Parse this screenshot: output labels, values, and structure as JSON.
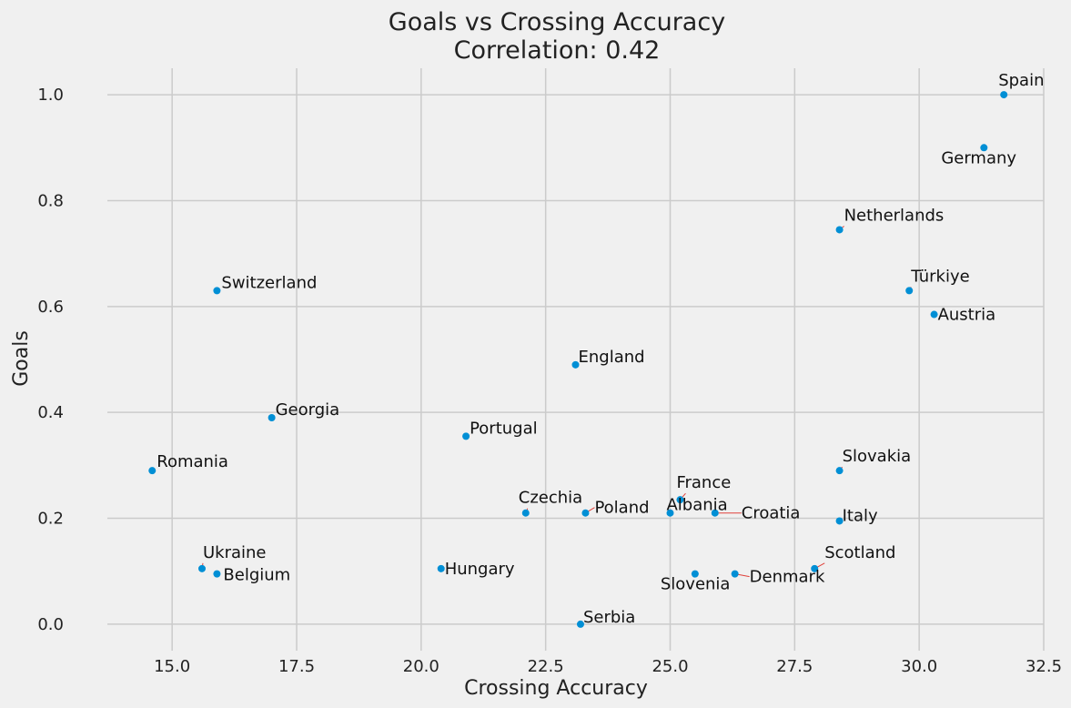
{
  "chart_data": {
    "type": "scatter",
    "title": "Goals vs Crossing Accuracy",
    "subtitle": "Correlation: 0.42",
    "xlabel": "Crossing Accuracy",
    "ylabel": "Goals",
    "xlim": [
      13.7,
      32.5
    ],
    "ylim": [
      -0.05,
      1.05
    ],
    "x_ticks": [
      "15.0",
      "17.5",
      "20.0",
      "22.5",
      "25.0",
      "27.5",
      "30.0",
      "32.5"
    ],
    "y_ticks": [
      "0.0",
      "0.2",
      "0.4",
      "0.6",
      "0.8",
      "1.0"
    ],
    "grid": true,
    "point_color": "#008fd5",
    "leader_color": "#e0403a",
    "background": "#f0f0f0",
    "points": [
      {
        "label": "Spain",
        "x": 31.7,
        "y": 1.0
      },
      {
        "label": "Germany",
        "x": 31.3,
        "y": 0.9
      },
      {
        "label": "Netherlands",
        "x": 28.4,
        "y": 0.745
      },
      {
        "label": "Türkiye",
        "x": 29.8,
        "y": 0.63
      },
      {
        "label": "Austria",
        "x": 30.3,
        "y": 0.585
      },
      {
        "label": "Switzerland",
        "x": 15.9,
        "y": 0.63
      },
      {
        "label": "England",
        "x": 23.1,
        "y": 0.49
      },
      {
        "label": "Georgia",
        "x": 17.0,
        "y": 0.39
      },
      {
        "label": "Portugal",
        "x": 20.9,
        "y": 0.355
      },
      {
        "label": "Romania",
        "x": 14.6,
        "y": 0.29
      },
      {
        "label": "Slovakia",
        "x": 28.4,
        "y": 0.29
      },
      {
        "label": "France",
        "x": 25.2,
        "y": 0.235
      },
      {
        "label": "Czechia",
        "x": 22.1,
        "y": 0.21
      },
      {
        "label": "Poland",
        "x": 23.3,
        "y": 0.21
      },
      {
        "label": "Albania",
        "x": 25.0,
        "y": 0.21
      },
      {
        "label": "Croatia",
        "x": 25.9,
        "y": 0.21
      },
      {
        "label": "Italy",
        "x": 28.4,
        "y": 0.195
      },
      {
        "label": "Ukraine",
        "x": 15.6,
        "y": 0.105
      },
      {
        "label": "Belgium",
        "x": 15.9,
        "y": 0.095
      },
      {
        "label": "Hungary",
        "x": 20.4,
        "y": 0.105
      },
      {
        "label": "Scotland",
        "x": 27.9,
        "y": 0.105
      },
      {
        "label": "Slovenia",
        "x": 25.5,
        "y": 0.095
      },
      {
        "label": "Denmark",
        "x": 26.3,
        "y": 0.095
      },
      {
        "label": "Serbia",
        "x": 23.2,
        "y": 0.0
      }
    ]
  }
}
